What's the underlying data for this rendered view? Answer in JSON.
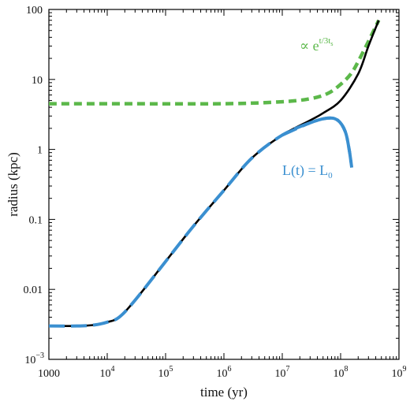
{
  "chart_data": {
    "type": "line",
    "title": "",
    "xlabel": "time (yr)",
    "ylabel": "radius (kpc)",
    "xscale": "log",
    "yscale": "log",
    "xlim": [
      1000,
      1000000000
    ],
    "ylim": [
      0.001,
      100
    ],
    "x_ticks": [
      {
        "value": 1000,
        "base": "1000",
        "exp": ""
      },
      {
        "value": 10000,
        "base": "10",
        "exp": "4"
      },
      {
        "value": 100000,
        "base": "10",
        "exp": "5"
      },
      {
        "value": 1000000,
        "base": "10",
        "exp": "6"
      },
      {
        "value": 10000000,
        "base": "10",
        "exp": "7"
      },
      {
        "value": 100000000,
        "base": "10",
        "exp": "8"
      },
      {
        "value": 1000000000,
        "base": "10",
        "exp": "9"
      }
    ],
    "y_ticks": [
      {
        "value": 0.001,
        "base": "10",
        "exp": "−3"
      },
      {
        "value": 0.01,
        "base": "0.01",
        "exp": ""
      },
      {
        "value": 0.1,
        "base": "0.1",
        "exp": ""
      },
      {
        "value": 1,
        "base": "1",
        "exp": ""
      },
      {
        "value": 10,
        "base": "10",
        "exp": ""
      },
      {
        "value": 100,
        "base": "100",
        "exp": ""
      }
    ],
    "series": [
      {
        "style": "solid",
        "color": "#000000",
        "x": [
          1000,
          3000,
          6000,
          10000,
          16000,
          30000,
          100000,
          300000,
          1000000,
          3000000,
          10000000,
          30000000,
          50000000,
          100000000,
          200000000,
          300000000,
          450000000
        ],
        "y": [
          0.003,
          0.003,
          0.0031,
          0.0034,
          0.004,
          0.007,
          0.025,
          0.08,
          0.26,
          0.75,
          1.6,
          2.6,
          3.3,
          5.0,
          12,
          30,
          70
        ]
      },
      {
        "style": "dashed",
        "color": "#3a8fd0",
        "x": [
          1000,
          3000,
          6000,
          10000,
          16000,
          30000,
          100000,
          300000,
          1000000,
          3000000,
          10000000,
          30000000,
          60000000,
          90000000,
          120000000,
          140000000,
          155000000
        ],
        "y": [
          0.003,
          0.003,
          0.0031,
          0.0034,
          0.004,
          0.007,
          0.025,
          0.08,
          0.26,
          0.75,
          1.6,
          2.4,
          2.8,
          2.6,
          1.8,
          1.0,
          0.55
        ]
      },
      {
        "style": "dashed",
        "color": "#5cb84a",
        "x": [
          1000,
          10000,
          1000000,
          10000000,
          30000000,
          60000000,
          100000000,
          150000000,
          200000000,
          300000000,
          450000000
        ],
        "y": [
          4.5,
          4.5,
          4.5,
          4.8,
          5.3,
          6.3,
          8.5,
          12,
          18,
          35,
          70
        ]
      }
    ],
    "annotations": [
      {
        "id": "exp",
        "color": "#5cb84a",
        "prefix": "∝ e",
        "sup": "t/3t",
        "sub": "s"
      },
      {
        "id": "lum",
        "color": "#3a8fd0",
        "text": "L(t) = L",
        "sub": "0"
      }
    ]
  }
}
